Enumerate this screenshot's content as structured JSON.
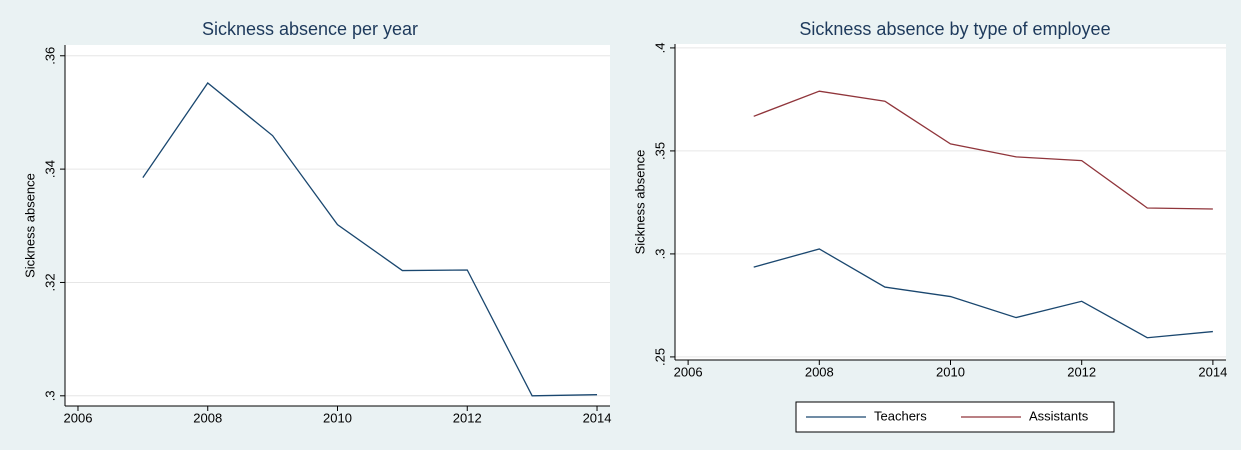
{
  "chart_data": [
    {
      "type": "line",
      "title": "Sickness absence per year",
      "y_label": "Sickness absence",
      "x": [
        2007,
        2008,
        2009,
        2010,
        2011,
        2012,
        2013,
        2014
      ],
      "values": [
        0.3385,
        0.3552,
        0.3459,
        0.3302,
        0.3221,
        0.3222,
        0.3,
        0.3002
      ],
      "color": "#1a476f",
      "xlim": [
        2005.8,
        2014.2
      ],
      "xticks": [
        2006,
        2008,
        2010,
        2012,
        2014
      ],
      "ylim": [
        0.2982,
        0.3619
      ],
      "yticks": [
        {
          "value": 0.3,
          "label": ".3"
        },
        {
          "value": 0.32,
          "label": ".32"
        },
        {
          "value": 0.34,
          "label": ".34"
        },
        {
          "value": 0.36,
          "label": ".36"
        }
      ],
      "grid": true
    },
    {
      "type": "line",
      "title": "Sickness  absence by type of employee",
      "y_label": "Sickness absence",
      "x": [
        2007,
        2008,
        2009,
        2010,
        2011,
        2012,
        2013,
        2014
      ],
      "series": [
        {
          "name": "Teachers",
          "color": "#1a476f",
          "values": [
            0.2936,
            0.3024,
            0.2839,
            0.2793,
            0.2691,
            0.277,
            0.2593,
            0.2623
          ]
        },
        {
          "name": "Assistants",
          "color": "#90353b",
          "values": [
            0.3668,
            0.379,
            0.3741,
            0.3534,
            0.3471,
            0.3453,
            0.3223,
            0.3218
          ]
        }
      ],
      "xlim": [
        2005.8,
        2014.2
      ],
      "xticks": [
        2006,
        2008,
        2010,
        2012,
        2014
      ],
      "ylim": [
        0.2485,
        0.4019
      ],
      "yticks": [
        {
          "value": 0.25,
          "label": ".25"
        },
        {
          "value": 0.3,
          "label": ".3"
        },
        {
          "value": 0.35,
          "label": ".35"
        },
        {
          "value": 0.4,
          "label": ".4"
        }
      ],
      "grid": true,
      "legend": "bottom"
    }
  ]
}
